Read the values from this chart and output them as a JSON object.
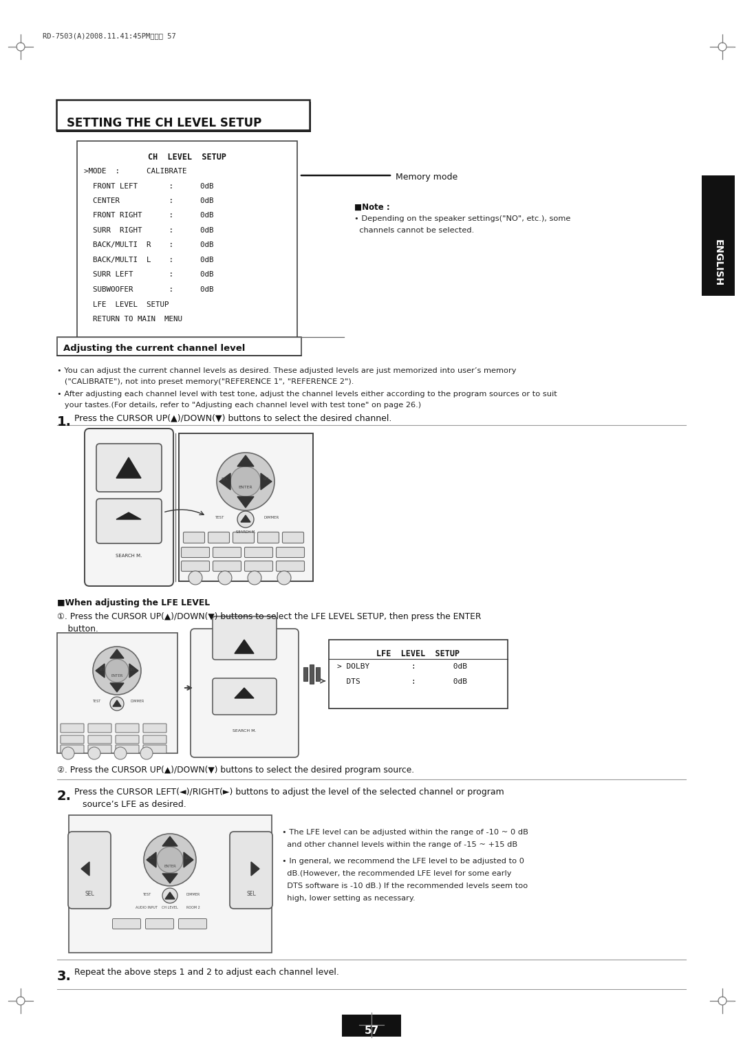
{
  "bg_color": "#ffffff",
  "header_text": "RD-7503(A)2008.11.41:45PM페이지 57",
  "title_box_text": "SETTING THE CH LEVEL SETUP",
  "ch_level_title": "CH  LEVEL  SETUP",
  "ch_menu_lines": [
    ">MODE  :      CALIBRATE",
    "  FRONT LEFT       :      0dB",
    "  CENTER           :      0dB",
    "  FRONT RIGHT      :      0dB",
    "  SURR  RIGHT      :      0dB",
    "  BACK/MULTI  R    :      0dB",
    "  BACK/MULTI  L    :      0dB",
    "  SURR LEFT        :      0dB",
    "  SUBWOOFER        :      0dB",
    "  LFE  LEVEL  SETUP",
    "  RETURN TO MAIN  MENU"
  ],
  "memory_mode_label": "Memory mode",
  "note_title": "■Note :",
  "note_line1": "• Depending on the speaker settings(\"NO\", etc.), some",
  "note_line2": "  channels cannot be selected.",
  "english_label": "ENGLISH",
  "section_title": "Adjusting the current channel level",
  "bullet1a": "• You can adjust the current channel levels as desired. These adjusted levels are just memorized into user’s memory",
  "bullet1b": "   (\"CALIBRATE\"), not into preset memory(\"REFERENCE 1\", \"REFERENCE 2\").",
  "bullet2a": "• After adjusting each channel level with test tone, adjust the channel levels either according to the program sources or to suit",
  "bullet2b": "   your tastes.(For details, refer to \"Adjusting each channel level with test tone\" on page 26.)",
  "step1_num": "1.",
  "step1_text": "Press the CURSOR UP(▲)/DOWN(▼) buttons to select the desired channel.",
  "lfe_note_title": "■When adjusting the LFE LEVEL",
  "lfe_step1a": "①. Press the CURSOR UP(▲)/DOWN(▼) buttons to select the LFE LEVEL SETUP, then press the ENTER",
  "lfe_step1b": "    button.",
  "lfe_step2": "②. Press the CURSOR UP(▲)/DOWN(▼) buttons to select the desired program source.",
  "lfe_box_title": "LFE  LEVEL  SETUP",
  "lfe_dolby": "> DOLBY         :        0dB",
  "lfe_dts": "  DTS           :        0dB",
  "step2_num": "2.",
  "step2_texta": "Press the CURSOR LEFT(◄)/RIGHT(►) buttons to adjust the level of the selected channel or program",
  "step2_textb": "   source’s LFE as desired.",
  "lfe_bullet1a": "• The LFE level can be adjusted within the range of -10 ~ 0 dB",
  "lfe_bullet1b": "  and other channel levels within the range of -15 ~ +15 dB",
  "lfe_bullet2a": "• In general, we recommend the LFE level to be adjusted to 0",
  "lfe_bullet2b": "  dB.(However, the recommended LFE level for some early",
  "lfe_bullet2c": "  DTS software is -10 dB.) If the recommended levels seem too",
  "lfe_bullet2d": "  high, lower setting as necessary.",
  "step3_num": "3.",
  "step3_text": "Repeat the above steps 1 and 2 to adjust each channel level.",
  "page_num": "57",
  "figsize": [
    10.8,
    15.25
  ],
  "dpi": 100
}
